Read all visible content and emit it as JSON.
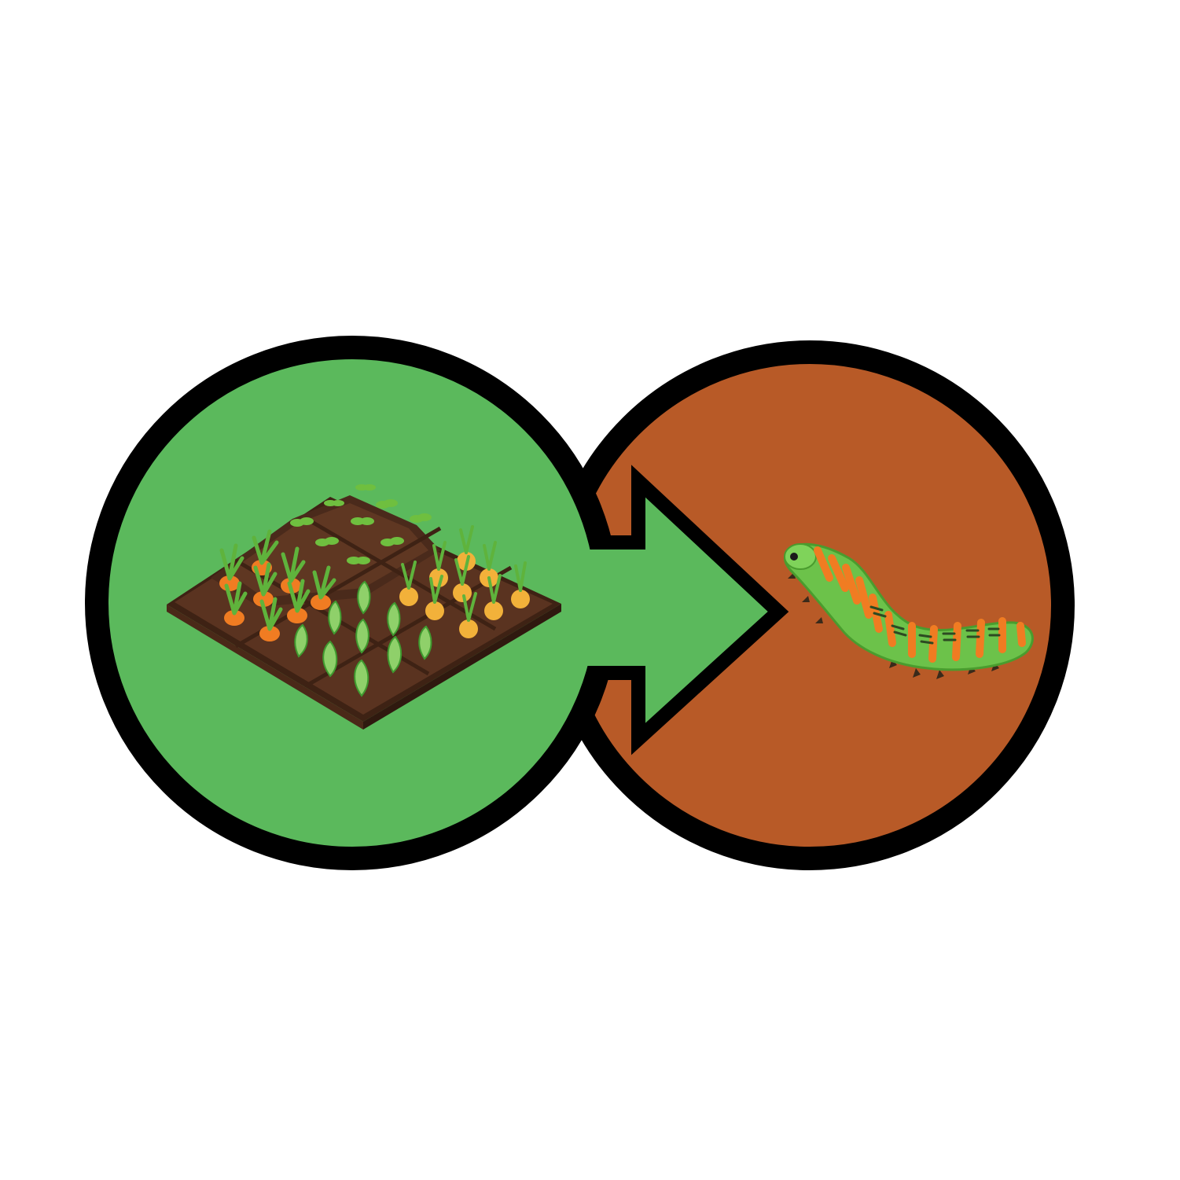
{
  "diagram": {
    "nodes": [
      {
        "id": "garden",
        "icon": "vegetable-garden-icon",
        "fill": "#5bb95c"
      },
      {
        "id": "pest",
        "icon": "caterpillar-icon",
        "fill": "#b85a27"
      }
    ],
    "edges": [
      {
        "from": "garden",
        "to": "pest",
        "icon": "arrow-right-icon",
        "fill": "#5bb95c"
      }
    ],
    "colors": {
      "outline": "#000000",
      "soil": "#5a3320",
      "soil_dark": "#3e2214",
      "soil_light": "#6b3c25",
      "carrot": "#f07c22",
      "onion": "#f2b13a",
      "leaf": "#6fbf3f",
      "leaf_dark": "#3f9a2f",
      "caterpillar": "#6cc24a",
      "caterpillar_stripe": "#f07c22"
    }
  }
}
